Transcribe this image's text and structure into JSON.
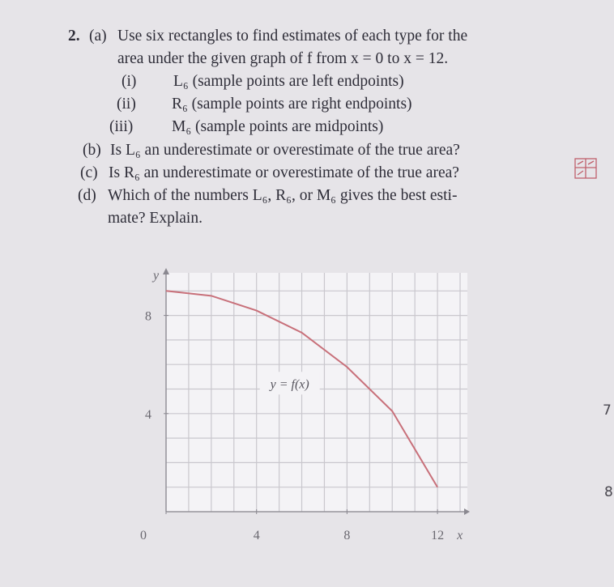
{
  "problem": {
    "number": "2.",
    "parts": [
      {
        "label": "(a)",
        "lines": [
          "Use six rectangles to find estimates of each type for the",
          "area under the given graph of f from x = 0 to x = 12."
        ],
        "items": [
          {
            "label": "(i)",
            "text": "L₆ (sample points are left endpoints)"
          },
          {
            "label": "(ii)",
            "text": "R₆ (sample points are right endpoints)"
          },
          {
            "label": "(iii)",
            "text": "M₆ (sample points are midpoints)"
          }
        ]
      },
      {
        "label": "(b)",
        "lines": [
          "Is L₆ an underestimate or overestimate of the true area?"
        ]
      },
      {
        "label": "(c)",
        "lines": [
          "Is R₆ an underestimate or overestimate of the true area?"
        ]
      },
      {
        "label": "(d)",
        "lines": [
          "Which of the numbers L₆, R₆, or M₆ gives the best esti-",
          "mate? Explain."
        ]
      }
    ]
  },
  "chart_data": {
    "type": "line",
    "x": [
      0,
      2,
      4,
      6,
      8,
      10,
      12
    ],
    "values": [
      9,
      8.8,
      8.2,
      7.3,
      5.9,
      4.1,
      1
    ],
    "color": "#c8707a",
    "xlabel": "x",
    "ylabel": "y",
    "annotation": "y = f(x)",
    "xlim": [
      0,
      13
    ],
    "ylim": [
      0,
      10
    ],
    "xticks": [
      0,
      4,
      8,
      12
    ],
    "yticks": [
      4,
      8
    ],
    "grid": true
  },
  "margin": {
    "marks": [
      "7",
      "8"
    ]
  }
}
